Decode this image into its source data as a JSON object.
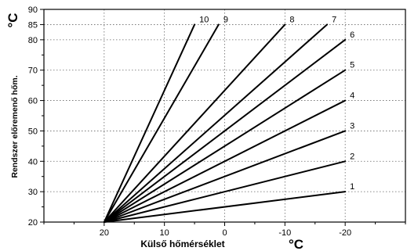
{
  "chart_data": {
    "type": "line",
    "xlabel": "Külső hőmérséklet",
    "ylabel": "Rendszer előremenő hőm.",
    "x_unit": "°C",
    "y_unit": "°C",
    "xlim": [
      30,
      -30
    ],
    "ylim": [
      20,
      90
    ],
    "x_ticks": [
      20,
      10,
      0,
      -10,
      -20
    ],
    "y_ticks": [
      20,
      30,
      40,
      50,
      60,
      70,
      80,
      85,
      90
    ],
    "grid": true,
    "origin": {
      "x": 20,
      "y": 20
    },
    "series": [
      {
        "name": "1",
        "x": [
          20,
          -20
        ],
        "y": [
          20,
          30
        ]
      },
      {
        "name": "2",
        "x": [
          20,
          -20
        ],
        "y": [
          20,
          40
        ]
      },
      {
        "name": "3",
        "x": [
          20,
          -20
        ],
        "y": [
          20,
          50
        ]
      },
      {
        "name": "4",
        "x": [
          20,
          -20
        ],
        "y": [
          20,
          60
        ]
      },
      {
        "name": "5",
        "x": [
          20,
          -20
        ],
        "y": [
          20,
          70
        ]
      },
      {
        "name": "6",
        "x": [
          20,
          -20
        ],
        "y": [
          20,
          80
        ]
      },
      {
        "name": "7",
        "x": [
          20,
          -17
        ],
        "y": [
          20,
          85
        ]
      },
      {
        "name": "8",
        "x": [
          20,
          -10
        ],
        "y": [
          20,
          85
        ]
      },
      {
        "name": "9",
        "x": [
          20,
          1
        ],
        "y": [
          20,
          85
        ]
      },
      {
        "name": "10",
        "x": [
          20,
          5
        ],
        "y": [
          20,
          85
        ]
      }
    ]
  }
}
